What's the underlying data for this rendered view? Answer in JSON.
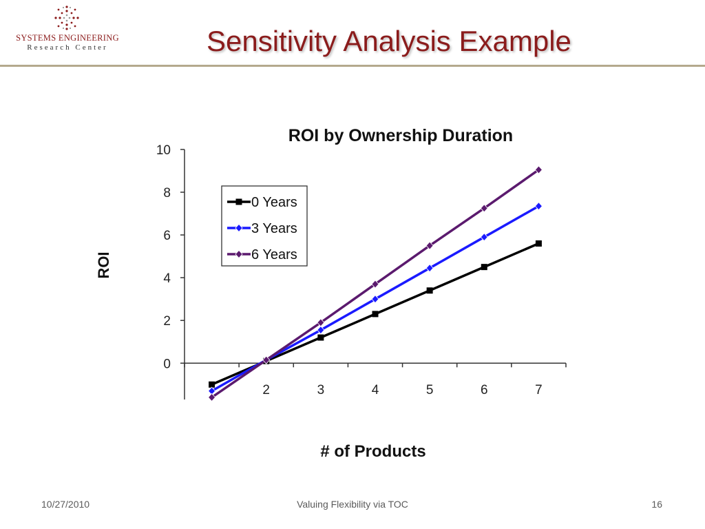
{
  "logo": {
    "line1": "SYSTEMS ENGINEERING",
    "line2": "Research Center",
    "accent_color": "#8b1a1a"
  },
  "slide": {
    "title": "Sensitivity Analysis Example",
    "title_color": "#8b1c1c",
    "rule_color": "#b4a98d"
  },
  "footer": {
    "date": "10/27/2010",
    "center": "Valuing Flexibility via TOC",
    "page": "16"
  },
  "chart_data": {
    "type": "line",
    "title": "ROI by Ownership Duration",
    "xlabel": "# of Products",
    "ylabel": "ROI",
    "x": [
      1,
      2,
      3,
      4,
      5,
      6,
      7
    ],
    "x_tick_labels": [
      "2",
      "3",
      "4",
      "5",
      "6",
      "7"
    ],
    "x_tick_values": [
      2,
      3,
      4,
      5,
      6,
      7
    ],
    "y_tick_labels": [
      "0",
      "2",
      "4",
      "6",
      "8",
      "10"
    ],
    "y_tick_values": [
      0,
      2,
      4,
      6,
      8,
      10
    ],
    "xlim": [
      0.5,
      7.5
    ],
    "ylim": [
      -1.7,
      10
    ],
    "grid": false,
    "legend_position": "top-left",
    "series": [
      {
        "name": "0 Years",
        "color": "#000000",
        "marker": "square",
        "values": [
          -1.0,
          0.1,
          1.2,
          2.3,
          3.4,
          4.5,
          5.6
        ]
      },
      {
        "name": "3 Years",
        "color": "#1a1aff",
        "marker": "diamond",
        "values": [
          -1.3,
          0.15,
          1.55,
          3.0,
          4.45,
          5.9,
          7.35
        ]
      },
      {
        "name": "6 Years",
        "color": "#5b1a6e",
        "marker": "diamond",
        "values": [
          -1.6,
          0.15,
          1.9,
          3.7,
          5.5,
          7.25,
          9.05
        ]
      }
    ]
  }
}
